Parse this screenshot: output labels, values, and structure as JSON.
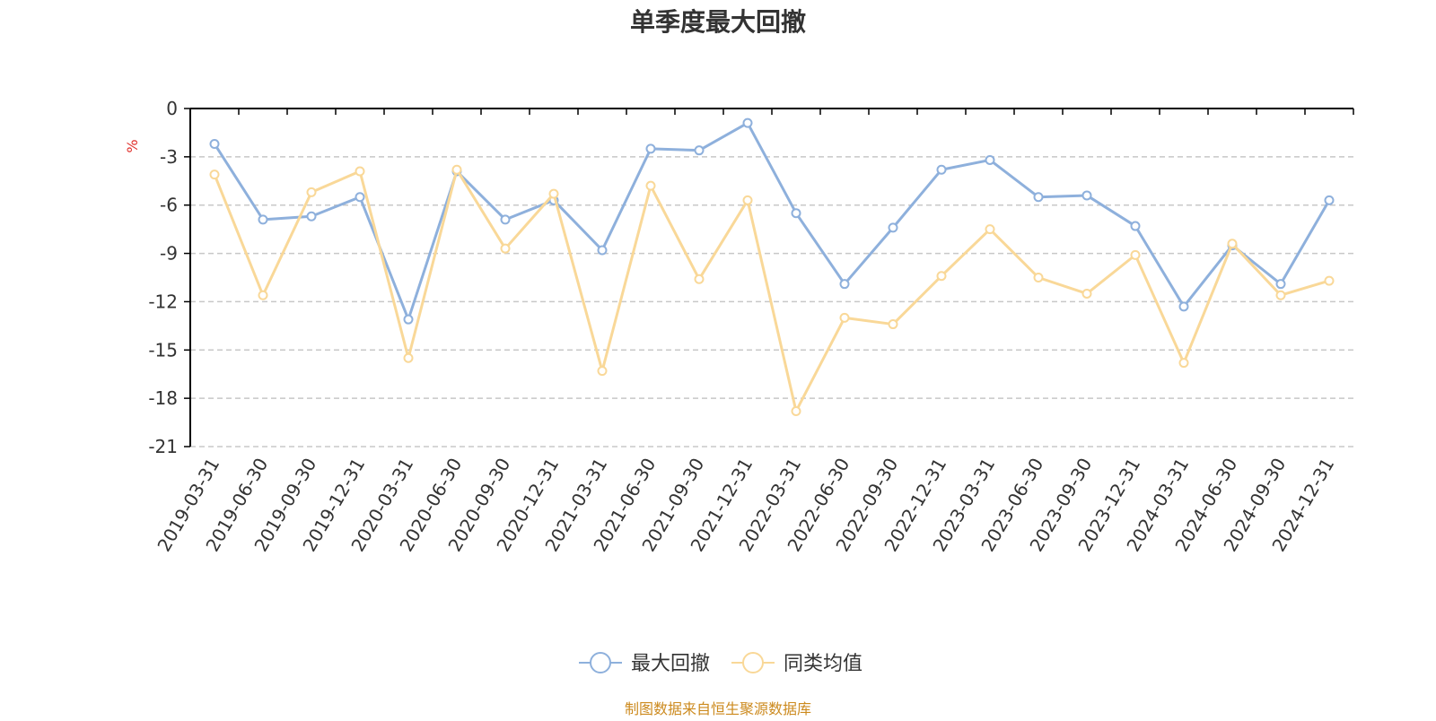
{
  "chart_data": {
    "type": "line",
    "title": "单季度最大回撤",
    "ylabel": "%",
    "ylim": [
      -21,
      0
    ],
    "yticks": [
      0,
      -3,
      -6,
      -9,
      -12,
      -15,
      -18,
      -21
    ],
    "grid": true,
    "legend_position": "bottom-center",
    "categories": [
      "2019-03-31",
      "2019-06-30",
      "2019-09-30",
      "2019-12-31",
      "2020-03-31",
      "2020-06-30",
      "2020-09-30",
      "2020-12-31",
      "2021-03-31",
      "2021-06-30",
      "2021-09-30",
      "2021-12-31",
      "2022-03-31",
      "2022-06-30",
      "2022-09-30",
      "2022-12-31",
      "2023-03-31",
      "2023-06-30",
      "2023-09-30",
      "2023-12-31",
      "2024-03-31",
      "2024-06-30",
      "2024-09-30",
      "2024-12-31"
    ],
    "series": [
      {
        "name": "最大回撤",
        "color": "#8eb0dc",
        "values": [
          -2.2,
          -6.9,
          -6.7,
          -5.5,
          -13.1,
          -3.9,
          -6.9,
          -5.7,
          -8.8,
          -2.5,
          -2.6,
          -0.9,
          -6.5,
          -10.9,
          -7.4,
          -3.8,
          -3.2,
          -5.5,
          -5.4,
          -7.3,
          -12.3,
          -8.5,
          -10.9,
          -5.7
        ]
      },
      {
        "name": "同类均值",
        "color": "#f9d898",
        "values": [
          -4.1,
          -11.6,
          -5.2,
          -3.9,
          -15.5,
          -3.8,
          -8.7,
          -5.3,
          -16.3,
          -4.8,
          -10.6,
          -5.7,
          -18.8,
          -13.0,
          -13.4,
          -10.4,
          -7.5,
          -10.5,
          -11.5,
          -9.1,
          -15.8,
          -8.4,
          -11.6,
          -10.7
        ]
      }
    ],
    "source_text": "制图数据来自恒生聚源数据库"
  },
  "colors": {
    "axis": "#000000",
    "grid": "#c8c8c8",
    "unit_label": "#e0302c",
    "source_label": "#cc8a1e",
    "title": "#333333"
  }
}
